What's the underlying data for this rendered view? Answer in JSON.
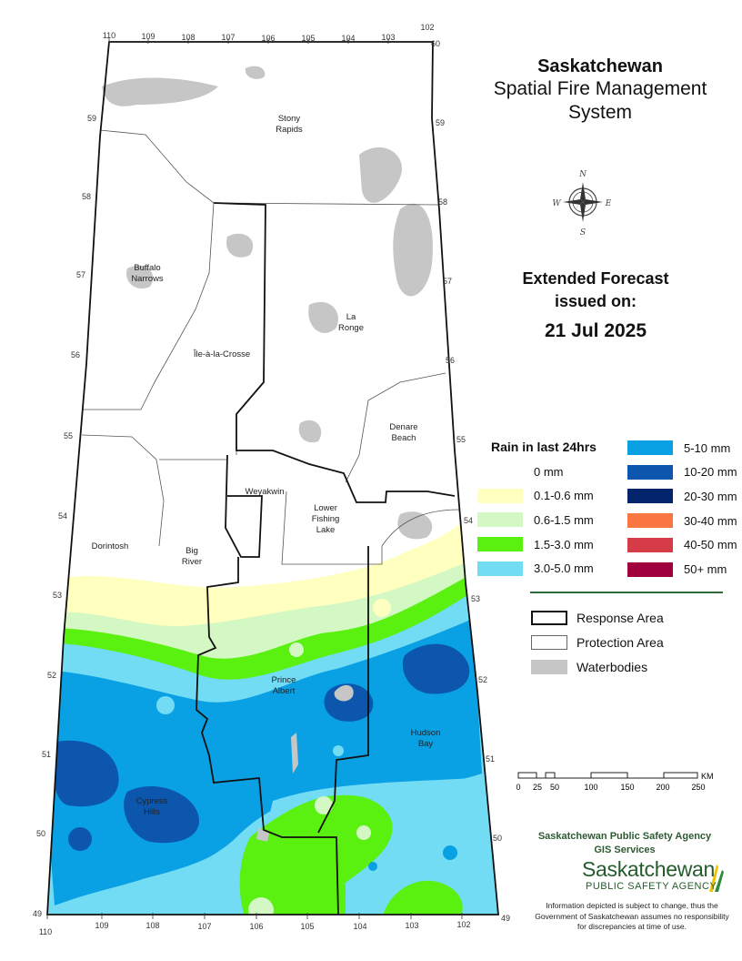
{
  "title": {
    "line1": "Saskatchewan",
    "line2": "Spatial Fire Management",
    "line3": "System"
  },
  "forecast": {
    "line1": "Extended Forecast",
    "line2": "issued on:",
    "date": "21 Jul 2025"
  },
  "legend": {
    "title": "Rain in last 24hrs",
    "left_items": [
      {
        "label": "0 mm",
        "color": "#ffffff"
      },
      {
        "label": "0.1-0.6 mm",
        "color": "#ffffc0"
      },
      {
        "label": "0.6-1.5 mm",
        "color": "#d3f8c4"
      },
      {
        "label": "1.5-3.0 mm",
        "color": "#5af00f"
      },
      {
        "label": "3.0-5.0 mm",
        "color": "#73dcf5"
      }
    ],
    "right_items": [
      {
        "label": "5-10 mm",
        "color": "#09a0e4"
      },
      {
        "label": "10-20 mm",
        "color": "#0c56ad"
      },
      {
        "label": "20-30 mm",
        "color": "#05246e"
      },
      {
        "label": "30-40 mm",
        "color": "#f97642"
      },
      {
        "label": "40-50 mm",
        "color": "#d63c48"
      },
      {
        "label": "50+ mm",
        "color": "#a0003e"
      }
    ]
  },
  "boundary_legend": {
    "response_area": "Response Area",
    "protection_area": "Protection Area",
    "waterbodies": "Waterbodies",
    "waterbody_color": "#c6c6c6"
  },
  "scale": {
    "ticks": [
      "0",
      "25",
      "50",
      "100",
      "150",
      "200",
      "250"
    ],
    "unit": "KM"
  },
  "longitudes_top": [
    "110",
    "109",
    "108",
    "107",
    "106",
    "105",
    "104",
    "103",
    "102"
  ],
  "longitudes_bottom": [
    "110",
    "109",
    "108",
    "107",
    "106",
    "105",
    "104",
    "103",
    "102"
  ],
  "latitudes": [
    "60",
    "59",
    "58",
    "57",
    "56",
    "55",
    "54",
    "53",
    "52",
    "51",
    "50",
    "49"
  ],
  "places": {
    "stony_rapids": [
      "Stony",
      "Rapids"
    ],
    "buffalo_narrows": [
      "Buffalo",
      "Narrows"
    ],
    "la_ronge": [
      "La",
      "Ronge"
    ],
    "ile_a_la_crosse": [
      "Île-à-la-Crosse"
    ],
    "denare_beach": [
      "Denare",
      "Beach"
    ],
    "weyakwin": [
      "Weyakwin"
    ],
    "lower_fishing_lake": [
      "Lower",
      "Fishing",
      "Lake"
    ],
    "dorintosh": [
      "Dorintosh"
    ],
    "big_river": [
      "Big",
      "River"
    ],
    "prince_albert": [
      "Prince",
      "Albert"
    ],
    "hudson_bay": [
      "Hudson",
      "Bay"
    ],
    "cypress_hills": [
      "Cypress",
      "Hills"
    ]
  },
  "compass": {
    "n": "N",
    "e": "E",
    "s": "S",
    "w": "W"
  },
  "agency": {
    "line1": "Saskatchewan Public Safety Agency",
    "line2": "GIS  Services",
    "logo_name": "Saskatchewan",
    "logo_sub": "PUBLIC SAFETY AGENCY",
    "disclaimer": "Information depicted is subject to change, thus the Government of Saskatchewan assumes no responsibility for discrepancies at time of use."
  }
}
